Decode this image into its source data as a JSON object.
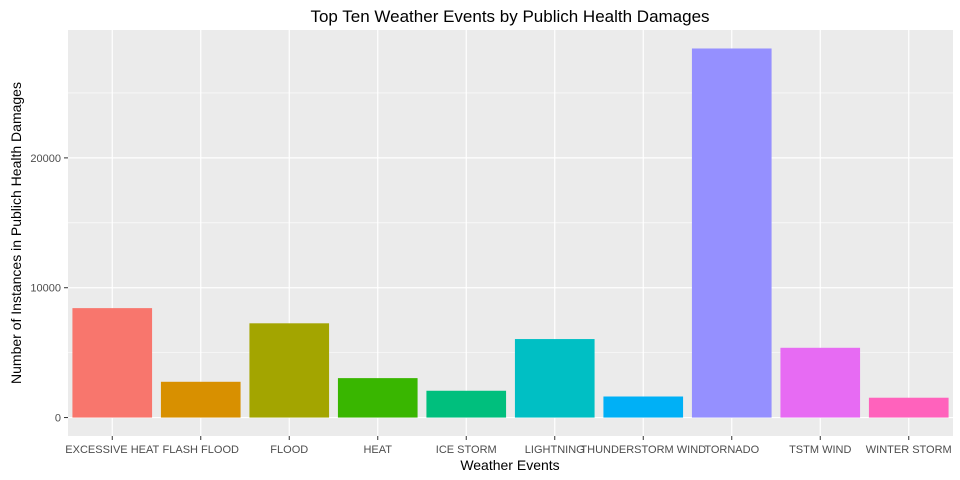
{
  "chart_data": {
    "type": "bar",
    "title": "Top Ten Weather Events by Publich Health Damages",
    "xlabel": "Weather Events",
    "ylabel": "Number of Instances in Publich Health Damages",
    "categories": [
      "EXCESSIVE HEAT",
      "FLASH FLOOD",
      "FLOOD",
      "HEAT",
      "ICE STORM",
      "LIGHTNING",
      "THUNDERSTORM WIND",
      "TORNADO",
      "TSTM WIND",
      "WINTER STORM"
    ],
    "values": [
      8428,
      2755,
      7259,
      3037,
      2064,
      6046,
      1621,
      28426,
      5373,
      1527
    ],
    "colors": [
      "#F8766D",
      "#D89000",
      "#A3A500",
      "#39B600",
      "#00BF7D",
      "#00BFC4",
      "#00B0F6",
      "#9590FF",
      "#E76BF3",
      "#FF62BC"
    ],
    "yticks": [
      0,
      10000,
      20000
    ],
    "ylim": [
      -1421,
      29850
    ],
    "grid": true,
    "legend": "none",
    "panel_background": "#EBEBEB",
    "grid_color": "#FFFFFF"
  }
}
